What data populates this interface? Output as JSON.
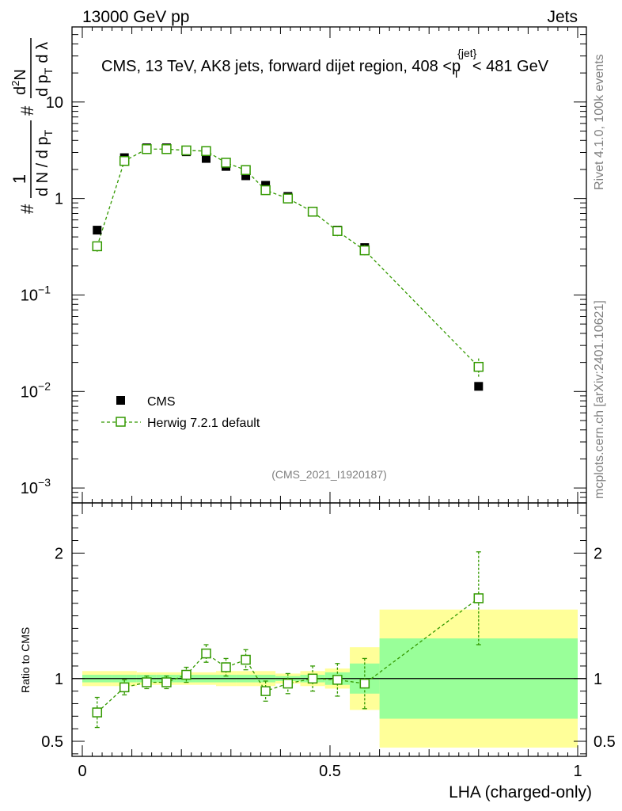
{
  "header": {
    "left": "13000 GeV pp",
    "right": "Jets"
  },
  "side_labels": {
    "rivet": "Rivet 4.1.0,  100k events",
    "mcplots": "mcplots.cern.ch [arXiv:2401.10621]"
  },
  "chart_data": {
    "type": "scatter",
    "title_parts": {
      "main": "CMS, 13 TeV, AK8 jets, forward dijet region, 408 <p",
      "sup": "{jet}",
      "sub": "T",
      "end": "< 481 GeV"
    },
    "analysis_id": "(CMS_2021_I1920187)",
    "xlabel": "LHA (charged-only)",
    "ylabel_parts": {
      "hash1": "#",
      "one": "1",
      "den": "d N / d p",
      "t": "T",
      "hash2": "#",
      "num": "d",
      "two": "2",
      "N": "N",
      "den2": "d p",
      "t2": "T",
      "dl": "d λ"
    },
    "ratio_ylabel": "Ratio to CMS",
    "x_ticks": [
      {
        "v": 0,
        "label": "0"
      },
      {
        "v": 0.5,
        "label": "0.5"
      },
      {
        "v": 1,
        "label": "1"
      }
    ],
    "y_ticks_main": [
      {
        "exp": -3,
        "base": "10",
        "sup": "−3"
      },
      {
        "exp": -2,
        "base": "10",
        "sup": "−2"
      },
      {
        "exp": -1,
        "base": "10",
        "sup": "−1"
      },
      {
        "exp": 0,
        "base": "1",
        "sup": ""
      },
      {
        "exp": 1,
        "base": "10",
        "sup": ""
      }
    ],
    "y_ticks_ratio": [
      {
        "v": 0.5,
        "label": "0.5"
      },
      {
        "v": 1,
        "label": "1"
      },
      {
        "v": 2,
        "label": "2"
      }
    ],
    "xlim": [
      0,
      1
    ],
    "ylim_main": [
      0.0007,
      60
    ],
    "ylim_ratio": [
      0.38,
      2.4
    ],
    "bin_edges": [
      0.0,
      0.06,
      0.11,
      0.15,
      0.19,
      0.23,
      0.27,
      0.31,
      0.35,
      0.39,
      0.44,
      0.49,
      0.54,
      0.6,
      1.0
    ],
    "x_centers": [
      0.03,
      0.085,
      0.13,
      0.17,
      0.21,
      0.25,
      0.29,
      0.33,
      0.37,
      0.415,
      0.465,
      0.515,
      0.57,
      0.8
    ],
    "series": [
      {
        "name": "CMS",
        "color": "#000000",
        "values": [
          0.47,
          2.65,
          3.35,
          3.35,
          3.05,
          2.6,
          2.15,
          1.72,
          1.37,
          1.05,
          0.73,
          0.47,
          0.31,
          0.0113
        ],
        "errors": [
          0.03,
          0.15,
          0.25,
          0.2,
          0.15,
          0.12,
          0.1,
          0.08,
          0.06,
          0.05,
          0.04,
          0.03,
          0.02,
          0.001
        ]
      },
      {
        "name": "Herwig 7.2.1 default",
        "color": "#339900",
        "values": [
          0.32,
          2.45,
          3.25,
          3.25,
          3.15,
          3.1,
          2.35,
          1.97,
          1.22,
          1.0,
          0.73,
          0.46,
          0.29,
          0.018
        ],
        "errors": [
          0.04,
          0.2,
          0.25,
          0.2,
          0.15,
          0.15,
          0.1,
          0.08,
          0.07,
          0.05,
          0.05,
          0.06,
          0.04,
          0.004
        ],
        "ratio": [
          0.73,
          0.93,
          0.97,
          0.97,
          1.03,
          1.2,
          1.09,
          1.15,
          0.9,
          0.96,
          1.0,
          0.99,
          0.96,
          1.64
        ],
        "ratio_errors": [
          0.12,
          0.06,
          0.05,
          0.05,
          0.06,
          0.07,
          0.07,
          0.08,
          0.08,
          0.08,
          0.1,
          0.13,
          0.2,
          0.37
        ]
      }
    ],
    "band_yellow": [
      0.06,
      0.06,
      0.05,
      0.05,
      0.05,
      0.05,
      0.06,
      0.06,
      0.06,
      0.04,
      0.06,
      0.08,
      0.25,
      0.55
    ],
    "band_green": [
      0.03,
      0.03,
      0.03,
      0.03,
      0.03,
      0.03,
      0.03,
      0.03,
      0.03,
      0.02,
      0.03,
      0.05,
      0.12,
      0.32
    ],
    "legend": [
      {
        "label": "CMS",
        "marker": "filled-square"
      },
      {
        "label": "Herwig 7.2.1 default",
        "marker": "open-square-dashed"
      }
    ],
    "colors": {
      "data": "#000000",
      "mc": "#339900",
      "band_green": "#99ff99",
      "band_yellow": "#ffff99"
    }
  }
}
